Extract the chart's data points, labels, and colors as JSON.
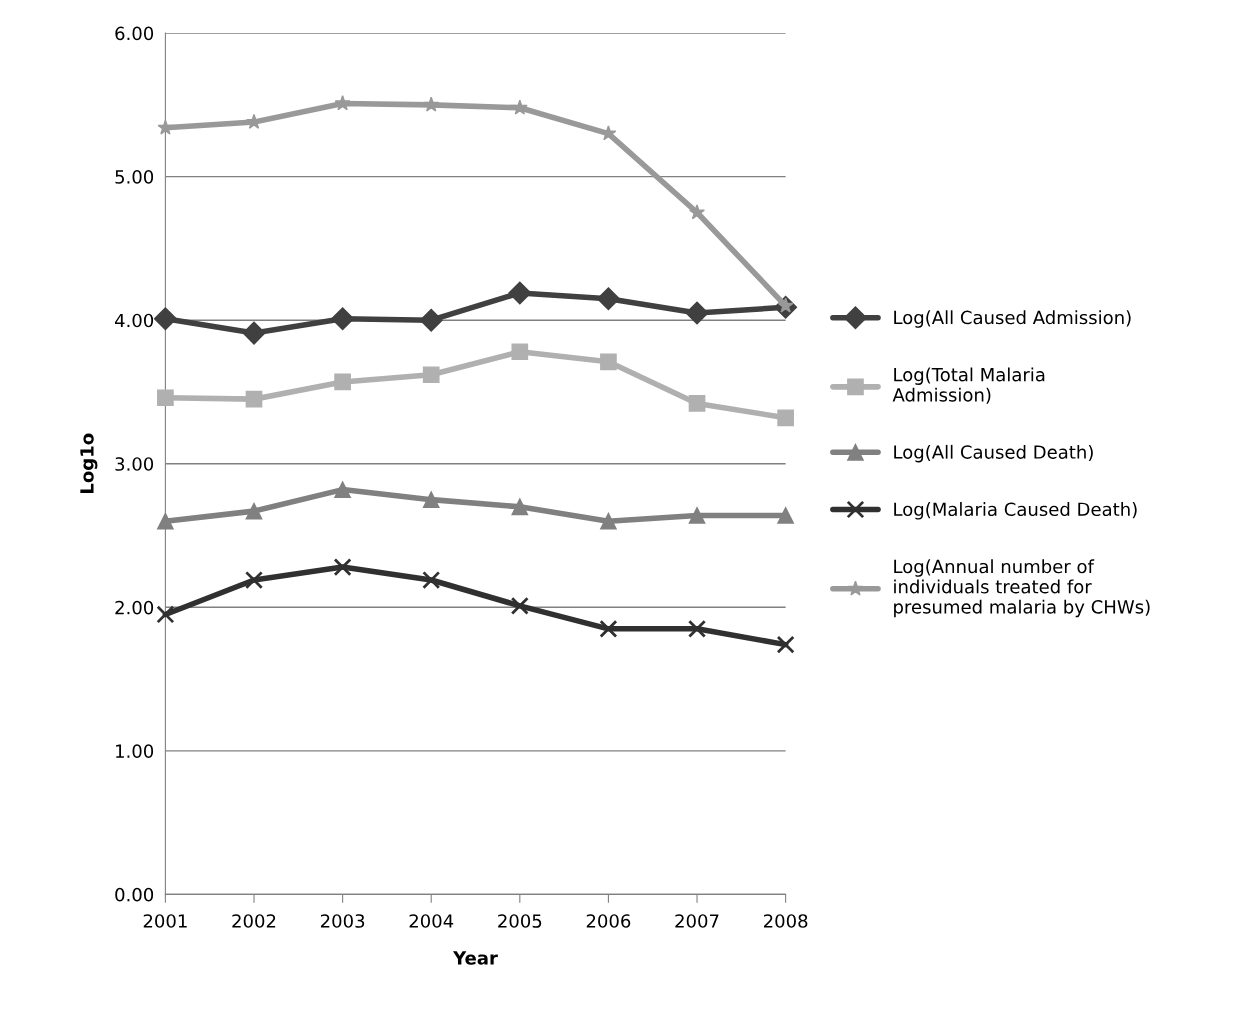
{
  "chart_data": {
    "type": "line",
    "xlabel": "Year",
    "ylabel": "Log1o",
    "categories": [
      "2001",
      "2002",
      "2003",
      "2004",
      "2005",
      "2006",
      "2007",
      "2008"
    ],
    "series": [
      {
        "name": "Log(All Caused Admission)",
        "color": "#404040",
        "marker": "diamond",
        "values": [
          4.01,
          3.91,
          4.01,
          4.0,
          4.19,
          4.15,
          4.05,
          4.09
        ]
      },
      {
        "name": "Log(Total Malaria Admission)",
        "color": "#b0b0b0",
        "marker": "square",
        "values": [
          3.46,
          3.45,
          3.57,
          3.62,
          3.78,
          3.71,
          3.42,
          3.32
        ]
      },
      {
        "name": "Log(All Caused Death)",
        "color": "#808080",
        "marker": "triangle",
        "values": [
          2.6,
          2.67,
          2.82,
          2.75,
          2.7,
          2.6,
          2.64,
          2.64
        ]
      },
      {
        "name": "Log(Malaria Caused Death)",
        "color": "#303030",
        "marker": "cross",
        "values": [
          1.95,
          2.19,
          2.28,
          2.19,
          2.01,
          1.85,
          1.85,
          1.74
        ]
      },
      {
        "name": "Log(Annual number of individuals treated for presumed malaria by CHWs)",
        "color": "#999999",
        "marker": "star",
        "values": [
          5.34,
          5.38,
          5.51,
          5.5,
          5.48,
          5.3,
          4.75,
          4.1
        ]
      }
    ],
    "ylim": [
      0,
      6
    ],
    "yticks": [
      {
        "value": 0,
        "label": "0.00"
      },
      {
        "value": 1,
        "label": "1.00"
      },
      {
        "value": 2,
        "label": "2.00"
      },
      {
        "value": 3,
        "label": "3.00"
      },
      {
        "value": 4,
        "label": "4.00"
      },
      {
        "value": 5,
        "label": "5.00"
      },
      {
        "value": 6,
        "label": "6.00"
      }
    ],
    "grid": "y",
    "legend": "right",
    "line_style": "solid"
  }
}
